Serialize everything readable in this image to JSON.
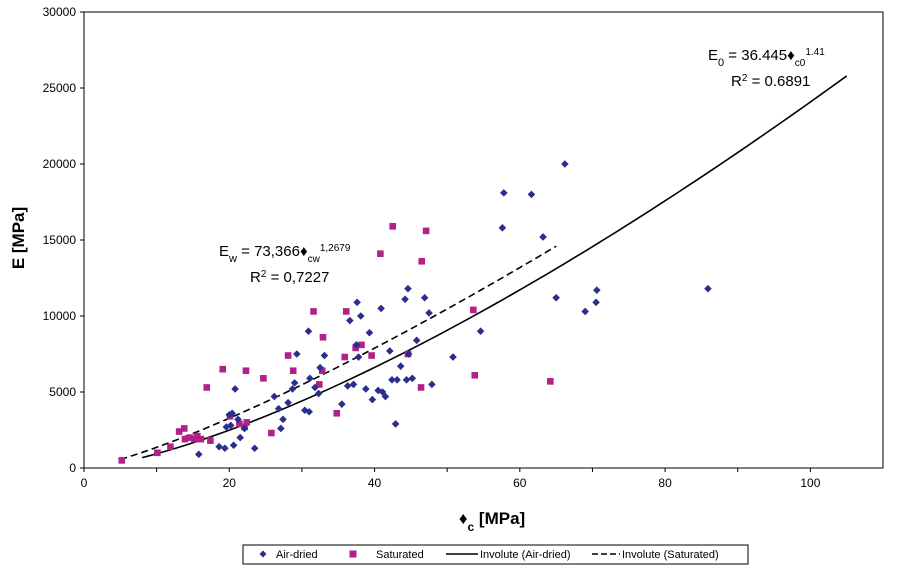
{
  "chart_data": {
    "type": "scatter",
    "xlabel": "♦c [MPa]",
    "xlabel_main": "♦",
    "xlabel_sub": "c",
    "xlabel_unit": " [MPa]",
    "ylabel": "E [MPa]",
    "xlim": [
      0,
      110
    ],
    "ylim": [
      0,
      30000
    ],
    "x_ticks": [
      0,
      20,
      40,
      60,
      80,
      100
    ],
    "y_ticks": [
      0,
      5000,
      10000,
      15000,
      20000,
      25000,
      30000
    ],
    "grid": true,
    "legend_position": "bottom",
    "colors": {
      "air_dried": "#2a2f8c",
      "saturated": "#b0218a",
      "trend": "#000000",
      "grid": "#bdbdbd"
    },
    "series": [
      {
        "name": "Air-dried",
        "marker": "diamond",
        "points": [
          [
            15.8,
            900
          ],
          [
            18.6,
            1400
          ],
          [
            19.4,
            1300
          ],
          [
            20.6,
            1500
          ],
          [
            21.5,
            2000
          ],
          [
            22.1,
            2600
          ],
          [
            23.5,
            1300
          ],
          [
            19.6,
            2700
          ],
          [
            20.2,
            2800
          ],
          [
            21.2,
            3200
          ],
          [
            20.0,
            3500
          ],
          [
            20.4,
            3600
          ],
          [
            20.8,
            5200
          ],
          [
            26.2,
            4700
          ],
          [
            27.1,
            2600
          ],
          [
            26.8,
            3900
          ],
          [
            28.1,
            4300
          ],
          [
            27.4,
            3200
          ],
          [
            28.7,
            5200
          ],
          [
            29.0,
            5600
          ],
          [
            30.4,
            3800
          ],
          [
            31.0,
            3700
          ],
          [
            32.3,
            4900
          ],
          [
            31.8,
            5300
          ],
          [
            31.1,
            5900
          ],
          [
            32.5,
            6600
          ],
          [
            33.1,
            7400
          ],
          [
            29.3,
            7500
          ],
          [
            30.9,
            9000
          ],
          [
            35.5,
            4200
          ],
          [
            36.3,
            5400
          ],
          [
            37.1,
            5500
          ],
          [
            37.8,
            7300
          ],
          [
            37.5,
            8100
          ],
          [
            38.1,
            10000
          ],
          [
            37.6,
            10900
          ],
          [
            38.8,
            5200
          ],
          [
            39.7,
            4500
          ],
          [
            40.5,
            5100
          ],
          [
            41.1,
            5000
          ],
          [
            41.5,
            4700
          ],
          [
            42.4,
            5800
          ],
          [
            43.1,
            5800
          ],
          [
            44.4,
            5800
          ],
          [
            45.2,
            5900
          ],
          [
            43.6,
            6700
          ],
          [
            42.1,
            7700
          ],
          [
            44.7,
            7500
          ],
          [
            45.8,
            8400
          ],
          [
            44.2,
            11100
          ],
          [
            44.6,
            11800
          ],
          [
            46.9,
            11200
          ],
          [
            47.5,
            10200
          ],
          [
            42.9,
            2900
          ],
          [
            47.9,
            5500
          ],
          [
            50.8,
            7300
          ],
          [
            54.6,
            9000
          ],
          [
            57.6,
            15800
          ],
          [
            57.8,
            18100
          ],
          [
            61.6,
            18000
          ],
          [
            63.2,
            15200
          ],
          [
            65.0,
            11200
          ],
          [
            66.2,
            20000
          ],
          [
            69.0,
            10300
          ],
          [
            70.5,
            10900
          ],
          [
            70.6,
            11700
          ],
          [
            85.9,
            11800
          ],
          [
            39.3,
            8900
          ],
          [
            40.9,
            10500
          ],
          [
            36.6,
            9700
          ]
        ]
      },
      {
        "name": "Saturated",
        "marker": "square",
        "points": [
          [
            5.2,
            500
          ],
          [
            10.1,
            1000
          ],
          [
            11.9,
            1400
          ],
          [
            13.1,
            2400
          ],
          [
            13.8,
            2600
          ],
          [
            13.9,
            1900
          ],
          [
            14.6,
            2000
          ],
          [
            15.6,
            2100
          ],
          [
            15.2,
            1900
          ],
          [
            16.1,
            1900
          ],
          [
            17.4,
            1800
          ],
          [
            16.9,
            5300
          ],
          [
            19.1,
            6500
          ],
          [
            20.1,
            3400
          ],
          [
            21.4,
            2900
          ],
          [
            22.1,
            2700
          ],
          [
            22.4,
            3000
          ],
          [
            22.3,
            6400
          ],
          [
            24.7,
            5900
          ],
          [
            25.8,
            2300
          ],
          [
            28.1,
            7400
          ],
          [
            28.8,
            6400
          ],
          [
            31.6,
            10300
          ],
          [
            32.4,
            5500
          ],
          [
            32.9,
            8600
          ],
          [
            32.8,
            6400
          ],
          [
            34.8,
            3600
          ],
          [
            35.9,
            7300
          ],
          [
            36.1,
            10300
          ],
          [
            37.4,
            7900
          ],
          [
            39.6,
            7400
          ],
          [
            40.8,
            14100
          ],
          [
            42.5,
            15900
          ],
          [
            44.6,
            7500
          ],
          [
            46.4,
            5300
          ],
          [
            46.5,
            13600
          ],
          [
            47.1,
            15600
          ],
          [
            53.6,
            10400
          ],
          [
            53.8,
            6100
          ],
          [
            64.2,
            5700
          ],
          [
            38.2,
            8100
          ]
        ]
      },
      {
        "name": "Involute (Air-dried)",
        "type": "power-trend",
        "coefficient": 36.445,
        "exponent": 1.41,
        "x_range": [
          8,
          105
        ],
        "equation": {
          "lhs": "E",
          "lhs_sub": "0",
          "mid": " = 36.445",
          "sym": "♦",
          "sym_sub": "c0",
          "exp": "1.41",
          "r2_label": "R",
          "r2_sup": "2",
          "r2_value": " = 0.6891"
        }
      },
      {
        "name": "Involute (Saturated)",
        "type": "power-trend",
        "coefficient": 73.366,
        "exponent": 1.2679,
        "x_range": [
          5,
          65
        ],
        "equation": {
          "lhs": "E",
          "lhs_sub": "w",
          "mid": " = 73,366",
          "sym": "♦",
          "sym_sub": "cw",
          "exp": "1,2679",
          "r2_label": "R",
          "r2_sup": "2",
          "r2_value": " = 0,7227"
        }
      }
    ]
  }
}
